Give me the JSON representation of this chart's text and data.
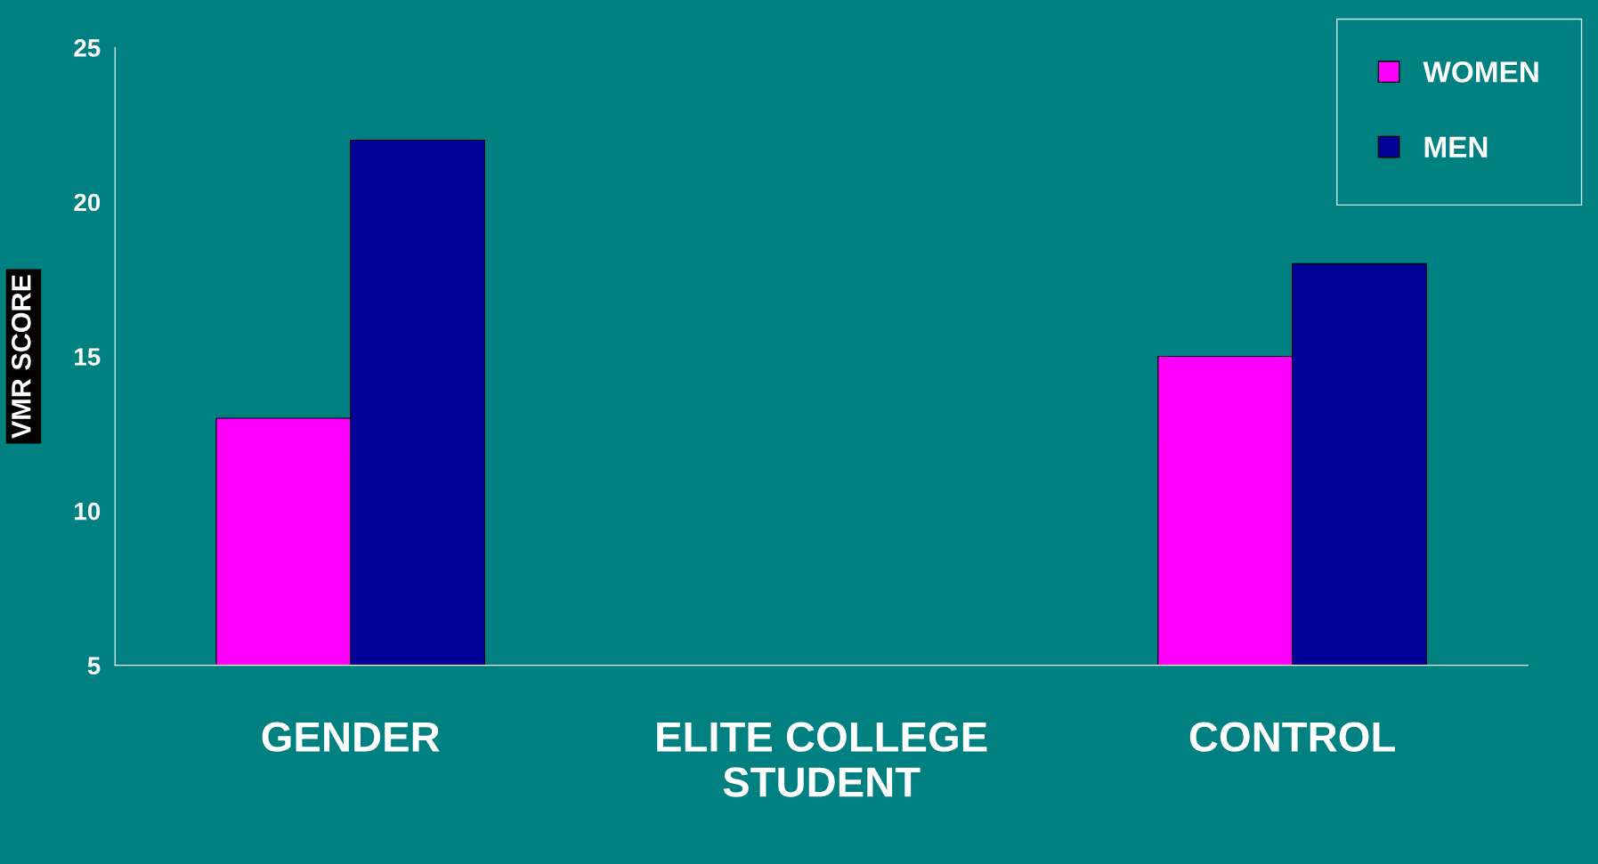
{
  "chart_data": {
    "type": "bar",
    "ylabel": "VMR SCORE",
    "categories": [
      "GENDER",
      "ELITE COLLEGE\nSTUDENT",
      "CONTROL"
    ],
    "series": [
      {
        "name": "WOMEN",
        "color": "#ff00ff",
        "values": [
          13,
          null,
          15
        ]
      },
      {
        "name": "MEN",
        "color": "#000099",
        "values": [
          22,
          null,
          18
        ]
      }
    ],
    "ylim": [
      5,
      25
    ],
    "yticks": [
      5,
      10,
      15,
      20,
      25
    ],
    "grid": false,
    "legend": "top right"
  }
}
